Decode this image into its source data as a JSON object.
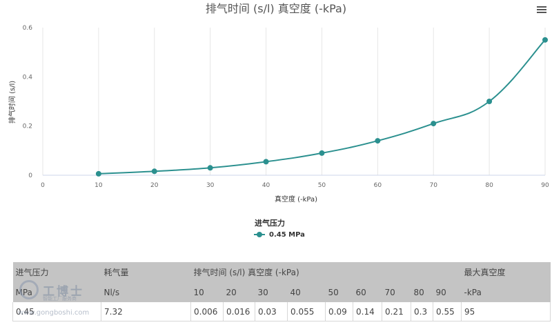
{
  "chart_data": {
    "type": "line",
    "title": "排气时间 (s/l) 真空度 (-kPa)",
    "xlabel": "真空度 (-kPa)",
    "ylabel": "排气时间 (s/l)",
    "xlim": [
      0,
      90
    ],
    "ylim": [
      0,
      0.6
    ],
    "x_ticks": [
      "0",
      "10",
      "20",
      "30",
      "40",
      "50",
      "60",
      "70",
      "80",
      "90"
    ],
    "y_ticks": [
      "0",
      "0.2",
      "0.4",
      "0.6"
    ],
    "grid": "vertical",
    "legend_title": "进气压力",
    "legend_position": "bottom-center",
    "series": [
      {
        "name": "0.45 MPa",
        "color": "#2b908f",
        "x": [
          10,
          20,
          30,
          40,
          50,
          60,
          70,
          80,
          90
        ],
        "y": [
          0.006,
          0.016,
          0.03,
          0.055,
          0.09,
          0.14,
          0.21,
          0.3,
          0.55
        ]
      }
    ]
  },
  "menu_icon": "hamburger-icon",
  "table": {
    "head1": {
      "pressure": "进气压力",
      "consumption": "耗气量",
      "exhaust": "排气时间 (s/l) 真空度 (-kPa)",
      "max_vacuum": "最大真空度"
    },
    "head2": {
      "pressure_unit": "MPa",
      "consumption_unit": "Nl/s",
      "vacuum_levels": [
        "10",
        "20",
        "30",
        "40",
        "50",
        "60",
        "70",
        "80",
        "90"
      ],
      "max_vacuum_unit": "-kPa"
    },
    "row": {
      "pressure": "0.45",
      "consumption": "7.32",
      "times": [
        "0.006",
        "0.016",
        "0.03",
        "0.055",
        "0.09",
        "0.14",
        "0.21",
        "0.3",
        "0.55"
      ],
      "max_vacuum": "95"
    }
  },
  "watermark": {
    "title": "工博士",
    "subtitle": "智能工厂服务商",
    "url": "www.gongboshi.com"
  }
}
